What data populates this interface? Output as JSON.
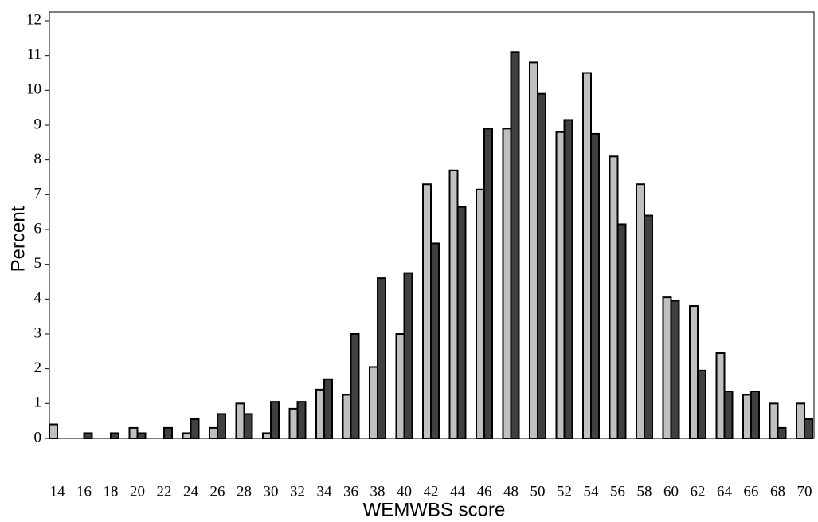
{
  "chart_data": {
    "type": "bar",
    "x_label": "WEMWBS score",
    "y_label": "Percent",
    "categories": [
      "14",
      "16",
      "18",
      "20",
      "22",
      "24",
      "26",
      "28",
      "30",
      "32",
      "34",
      "36",
      "38",
      "40",
      "42",
      "44",
      "46",
      "48",
      "50",
      "52",
      "54",
      "56",
      "58",
      "60",
      "62",
      "64",
      "66",
      "68",
      "70"
    ],
    "series": [
      {
        "color": "#c0c0c0",
        "values": [
          0.4,
          0,
          0,
          0.3,
          0,
          0.15,
          0.3,
          1.0,
          0.15,
          0.85,
          1.4,
          1.25,
          2.05,
          3.0,
          7.3,
          7.7,
          7.15,
          8.9,
          10.8,
          8.8,
          10.5,
          8.1,
          7.3,
          4.05,
          3.8,
          2.45,
          1.25,
          1.0,
          1.0
        ]
      },
      {
        "color": "#404040",
        "values": [
          0,
          0.15,
          0.15,
          0.15,
          0.3,
          0.55,
          0.7,
          0.7,
          1.05,
          1.05,
          1.7,
          3.0,
          4.6,
          4.75,
          5.6,
          6.65,
          8.9,
          11.1,
          9.9,
          9.15,
          8.75,
          6.15,
          6.4,
          3.95,
          1.95,
          1.35,
          1.35,
          0.3,
          0.55
        ]
      }
    ],
    "ylim": [
      0,
      12
    ],
    "yticks": [
      0,
      1,
      2,
      3,
      4,
      5,
      6,
      7,
      8,
      9,
      10,
      11,
      12
    ]
  }
}
